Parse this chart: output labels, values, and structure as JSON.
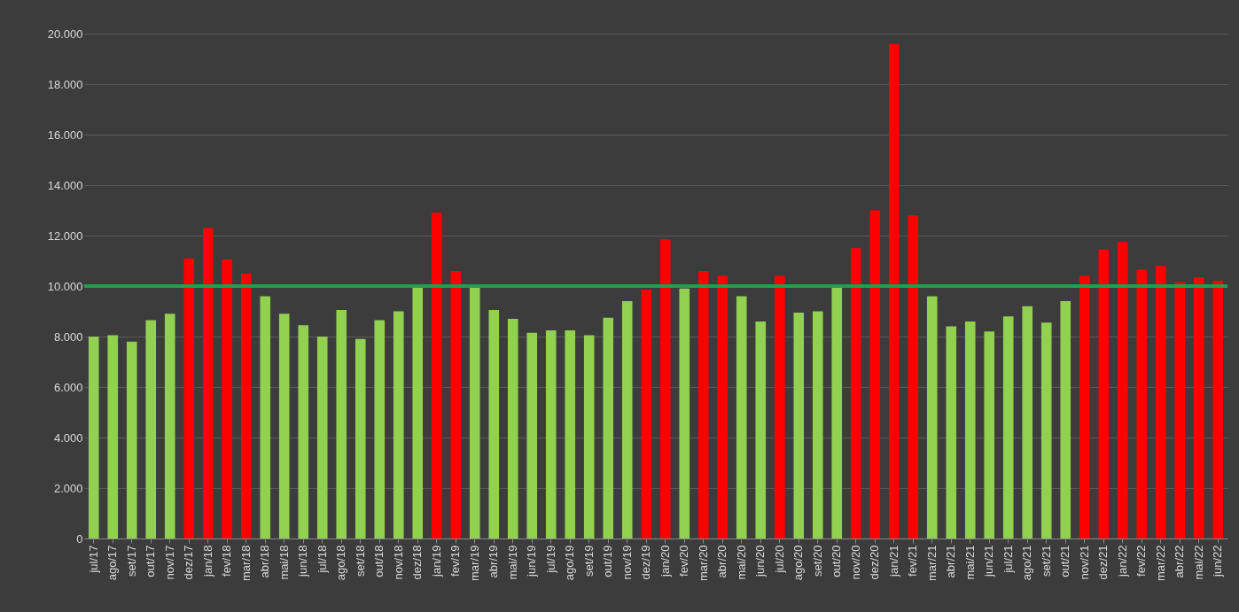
{
  "chart_data": {
    "type": "bar",
    "categories": [
      "jul/17",
      "ago/17",
      "set/17",
      "out/17",
      "nov/17",
      "dez/17",
      "jan/18",
      "fev/18",
      "mar/18",
      "abr/18",
      "mai/18",
      "jun/18",
      "jul/18",
      "ago/18",
      "set/18",
      "out/18",
      "nov/18",
      "dez/18",
      "jan/19",
      "fev/19",
      "mar/19",
      "abr/19",
      "mai/19",
      "jun/19",
      "jul/19",
      "ago/19",
      "set/19",
      "out/19",
      "nov/19",
      "dez/19",
      "jan/20",
      "fev/20",
      "mar/20",
      "abr/20",
      "mai/20",
      "jun/20",
      "jul/20",
      "ago/20",
      "set/20",
      "out/20",
      "nov/20",
      "dez/20",
      "jan/21",
      "fev/21",
      "mar/21",
      "abr/21",
      "mai/21",
      "jun/21",
      "jul/21",
      "ago/21",
      "set/21",
      "out/21",
      "nov/21",
      "dez/21",
      "jan/22",
      "fev/22",
      "mar/22",
      "abr/22",
      "mai/22",
      "jun/22"
    ],
    "values": [
      8000,
      8050,
      7800,
      8650,
      8900,
      11100,
      12300,
      11050,
      10500,
      9600,
      8900,
      8450,
      8000,
      9050,
      7900,
      8650,
      9000,
      9950,
      12900,
      10600,
      9950,
      9050,
      8700,
      8150,
      8250,
      8250,
      8050,
      8750,
      9400,
      9850,
      11850,
      9900,
      10600,
      10400,
      9600,
      8600,
      10400,
      8950,
      9000,
      9950,
      11500,
      13000,
      19600,
      12800,
      9600,
      8400,
      8600,
      8200,
      8800,
      9200,
      8550,
      9400,
      10400,
      11450,
      11750,
      10650,
      10800,
      10150,
      10350,
      10200
    ],
    "colors": [
      "#92d050",
      "#92d050",
      "#92d050",
      "#92d050",
      "#92d050",
      "#ff0000",
      "#ff0000",
      "#ff0000",
      "#ff0000",
      "#92d050",
      "#92d050",
      "#92d050",
      "#92d050",
      "#92d050",
      "#92d050",
      "#92d050",
      "#92d050",
      "#92d050",
      "#ff0000",
      "#ff0000",
      "#92d050",
      "#92d050",
      "#92d050",
      "#92d050",
      "#92d050",
      "#92d050",
      "#92d050",
      "#92d050",
      "#92d050",
      "#ff0000",
      "#ff0000",
      "#92d050",
      "#ff0000",
      "#ff0000",
      "#92d050",
      "#92d050",
      "#ff0000",
      "#92d050",
      "#92d050",
      "#92d050",
      "#ff0000",
      "#ff0000",
      "#ff0000",
      "#ff0000",
      "#92d050",
      "#92d050",
      "#92d050",
      "#92d050",
      "#92d050",
      "#92d050",
      "#92d050",
      "#92d050",
      "#ff0000",
      "#ff0000",
      "#ff0000",
      "#ff0000",
      "#ff0000",
      "#ff0000",
      "#ff0000",
      "#ff0000"
    ],
    "ylim": [
      0,
      20000
    ],
    "yticks": [
      {
        "value": 0,
        "label": "0"
      },
      {
        "value": 2000,
        "label": "2.000"
      },
      {
        "value": 4000,
        "label": "4.000"
      },
      {
        "value": 6000,
        "label": "6.000"
      },
      {
        "value": 8000,
        "label": "8.000"
      },
      {
        "value": 10000,
        "label": "10.000"
      },
      {
        "value": 12000,
        "label": "12.000"
      },
      {
        "value": 14000,
        "label": "14.000"
      },
      {
        "value": 16000,
        "label": "16.000"
      },
      {
        "value": 18000,
        "label": "18.000"
      },
      {
        "value": 20000,
        "label": "20.000"
      }
    ],
    "grid": "y",
    "ref_lines": [
      {
        "axis": "y",
        "value": 10000,
        "color": "#1fa04e"
      }
    ]
  }
}
